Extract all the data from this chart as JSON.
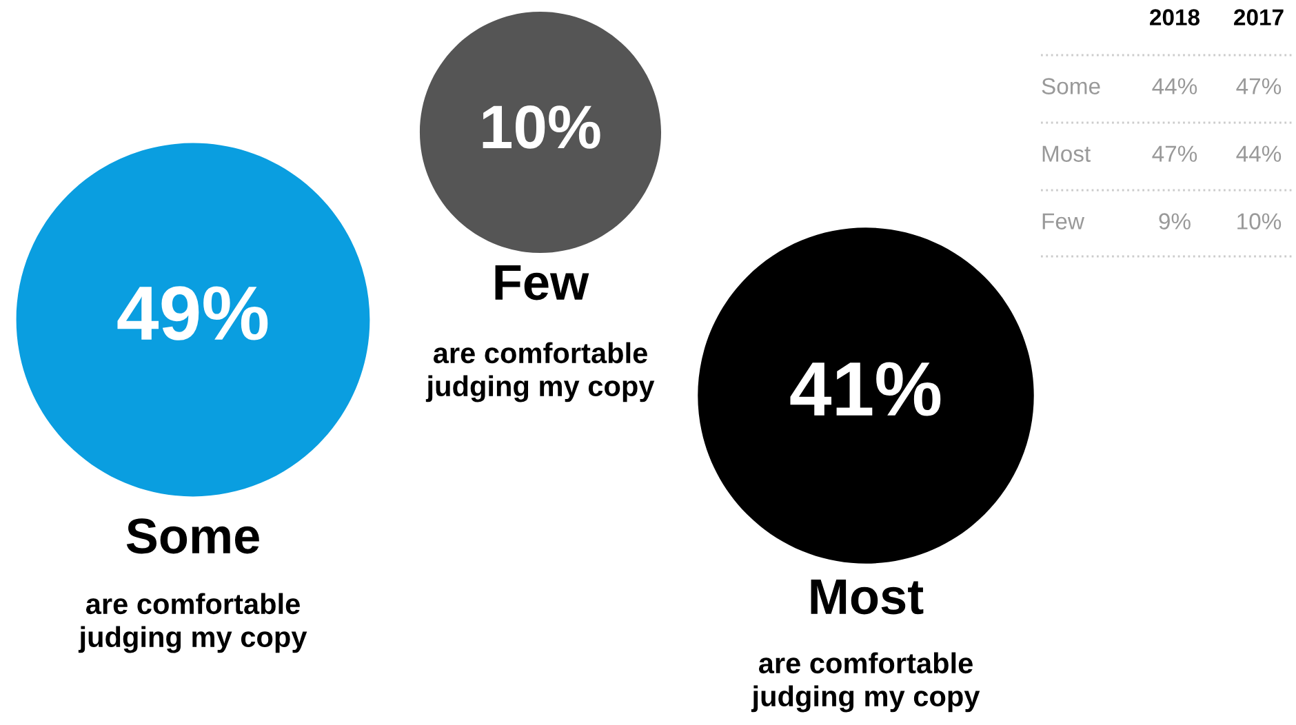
{
  "chart_data": [
    {
      "type": "other",
      "categories": [
        "Some",
        "Few",
        "Most"
      ],
      "values": [
        49,
        10,
        41
      ],
      "colors": [
        "#0a9ee0",
        "#555555",
        "#000000"
      ],
      "value_labels": [
        "49%",
        "10%",
        "41%"
      ],
      "annotations": [
        "are comfortable judging my copy",
        "are comfortable judging my copy",
        "are comfortable judging my copy"
      ]
    },
    {
      "type": "other",
      "categories": [
        "Some",
        "Most",
        "Few"
      ],
      "series": [
        {
          "name": "2018",
          "values": [
            44,
            47,
            9
          ],
          "value_labels": [
            "44%",
            "47%",
            "9%"
          ]
        },
        {
          "name": "2017",
          "values": [
            47,
            44,
            10
          ],
          "value_labels": [
            "47%",
            "44%",
            "10%"
          ]
        }
      ]
    }
  ]
}
